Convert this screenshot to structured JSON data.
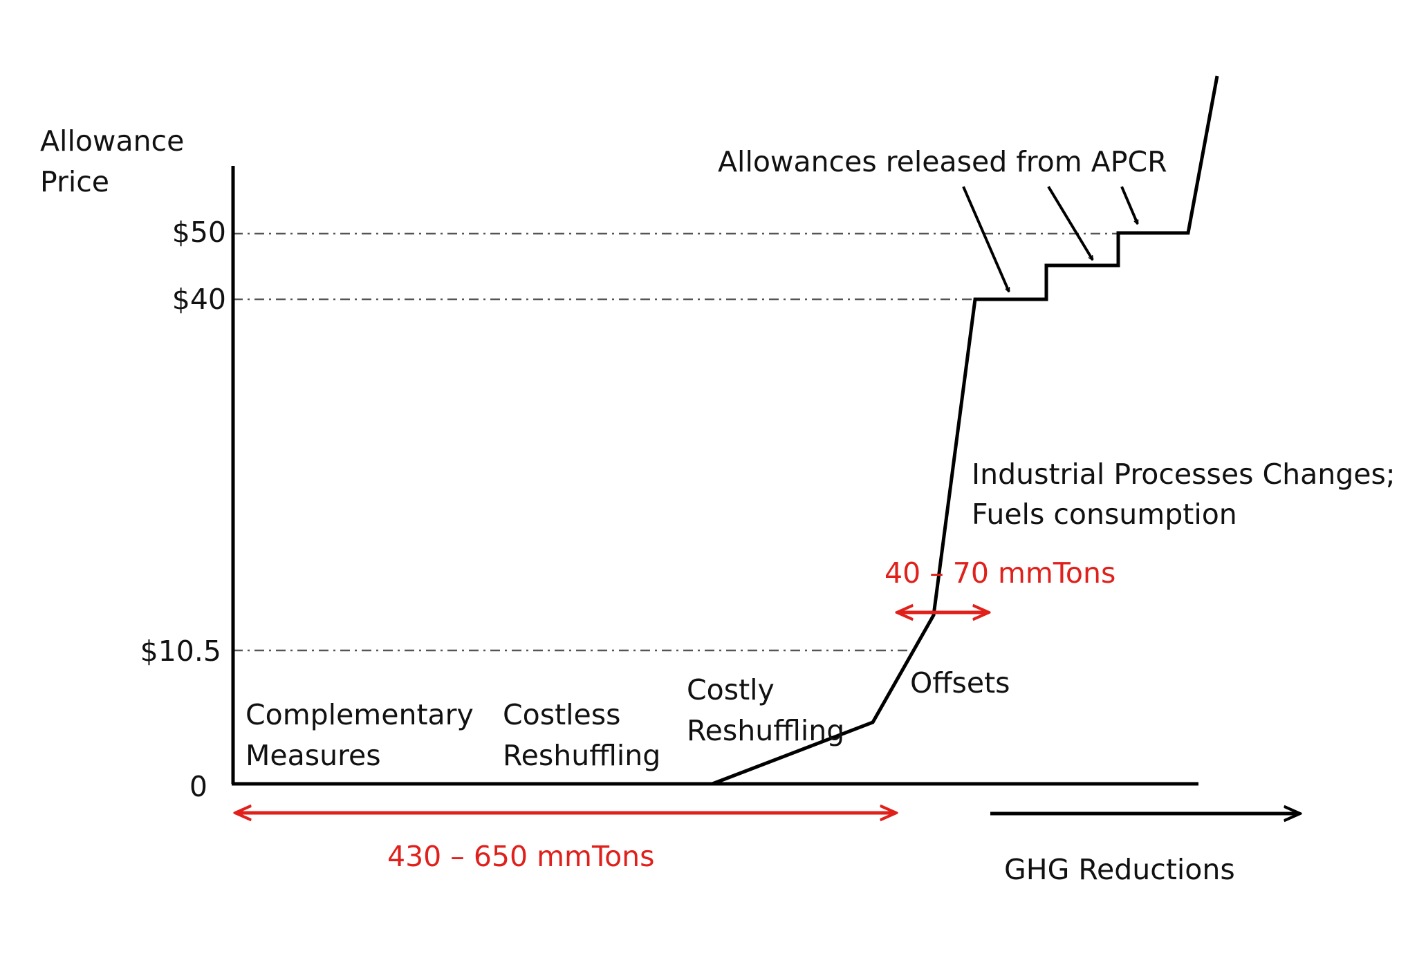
{
  "y_axis_label": [
    "Allowance",
    "Price"
  ],
  "price_ticks": {
    "p50": "$50",
    "p40": "$40",
    "p10_5": "$10.5",
    "zero": "0"
  },
  "apcr_label": "Allowances released from APCR",
  "region_labels": {
    "complementary": [
      "Complementary",
      "Measures"
    ],
    "costless": [
      "Costless",
      "Reshuffling"
    ],
    "costly": [
      "Costly",
      "Reshuffling"
    ],
    "offsets": "Offsets",
    "industrial": [
      "Industrial Processes Changes;",
      "Fuels consumption"
    ]
  },
  "ranges": {
    "lower": "430 – 650 mmTons",
    "offsets": "40 – 70 mmTons"
  },
  "x_axis_label": "GHG Reductions",
  "colors": {
    "curve": "#000000",
    "range": "#e0201b",
    "guide": "#555555"
  }
}
